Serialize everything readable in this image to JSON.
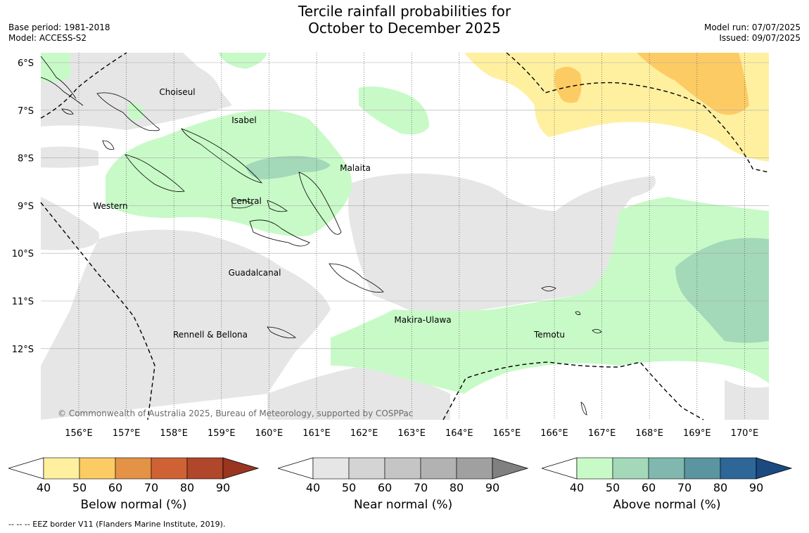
{
  "title": {
    "line1": "Tercile rainfall probabilities for",
    "line2": "October to December 2025"
  },
  "meta_left": {
    "base_period": "Base period: 1981-2018",
    "model": "Model: ACCESS-S2"
  },
  "meta_right": {
    "model_run": "Model run: 07/07/2025",
    "issued": "Issued: 09/07/2025"
  },
  "lat_labels": [
    "6°S",
    "7°S",
    "8°S",
    "9°S",
    "10°S",
    "11°S",
    "12°S"
  ],
  "lon_labels": [
    "156°E",
    "157°E",
    "158°E",
    "159°E",
    "160°E",
    "161°E",
    "162°E",
    "163°E",
    "164°E",
    "165°E",
    "166°E",
    "167°E",
    "168°E",
    "169°E",
    "170°E"
  ],
  "province_labels": [
    "Choiseul",
    "Isabel",
    "Malaita",
    "Western",
    "Central",
    "Guadalcanal",
    "Makira-Ulawa",
    "Rennell & Bellona",
    "Temotu"
  ],
  "copyright": "© Commonwealth of Australia 2025, Bureau of Meteorology, supported by COSPPac",
  "colorbars": [
    {
      "label": "Below normal (%)",
      "ticks": [
        "40",
        "50",
        "60",
        "70",
        "80",
        "90"
      ],
      "colors": [
        "#fff0a0",
        "#fdcb64",
        "#e39246",
        "#cf6234",
        "#b0462a",
        "#9a3520"
      ]
    },
    {
      "label": "Near normal (%)",
      "ticks": [
        "40",
        "50",
        "60",
        "70",
        "80",
        "90"
      ],
      "colors": [
        "#e6e6e6",
        "#d4d4d4",
        "#c5c5c5",
        "#b2b2b2",
        "#a0a0a0",
        "#808080"
      ]
    },
    {
      "label": "Above normal (%)",
      "ticks": [
        "40",
        "50",
        "60",
        "70",
        "80",
        "90"
      ],
      "colors": [
        "#c8fac8",
        "#a3d8b8",
        "#80b8b0",
        "#5a95a0",
        "#2e6698",
        "#1a4a80"
      ]
    }
  ],
  "footer": "--  --  -- EEZ border V11 (Flanders Marine Institute, 2019)."
}
